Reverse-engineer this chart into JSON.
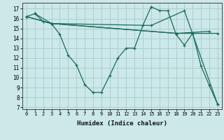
{
  "xlabel": "Humidex (Indice chaleur)",
  "bg_color": "#cce8e8",
  "grid_color": "#aacfcf",
  "line_color": "#1a6b5a",
  "xlim": [
    -0.5,
    23.5
  ],
  "ylim": [
    6.8,
    17.6
  ],
  "xticks": [
    0,
    1,
    2,
    3,
    4,
    5,
    6,
    7,
    8,
    9,
    10,
    11,
    12,
    13,
    14,
    15,
    16,
    17,
    18,
    19,
    20,
    21,
    22,
    23
  ],
  "yticks": [
    7,
    8,
    9,
    10,
    11,
    12,
    13,
    14,
    15,
    16,
    17
  ],
  "series": [
    {
      "x": [
        0,
        1,
        2,
        3,
        4,
        5,
        6,
        7,
        8,
        9,
        10,
        11,
        12,
        13,
        14,
        15,
        16,
        17,
        18,
        19,
        20,
        21,
        22,
        23
      ],
      "y": [
        16.2,
        16.5,
        15.7,
        15.5,
        14.4,
        12.3,
        11.3,
        9.3,
        8.5,
        8.5,
        10.2,
        12.0,
        13.0,
        13.0,
        15.3,
        17.2,
        16.8,
        16.8,
        14.4,
        13.3,
        14.5,
        11.2,
        9.2,
        7.3
      ]
    },
    {
      "x": [
        0,
        3,
        18,
        23
      ],
      "y": [
        16.2,
        15.5,
        14.5,
        14.5
      ]
    },
    {
      "x": [
        0,
        3,
        18,
        22
      ],
      "y": [
        16.2,
        15.5,
        14.5,
        14.7
      ]
    },
    {
      "x": [
        1,
        3,
        15,
        19,
        23
      ],
      "y": [
        16.5,
        15.5,
        15.3,
        16.8,
        7.3
      ]
    }
  ]
}
